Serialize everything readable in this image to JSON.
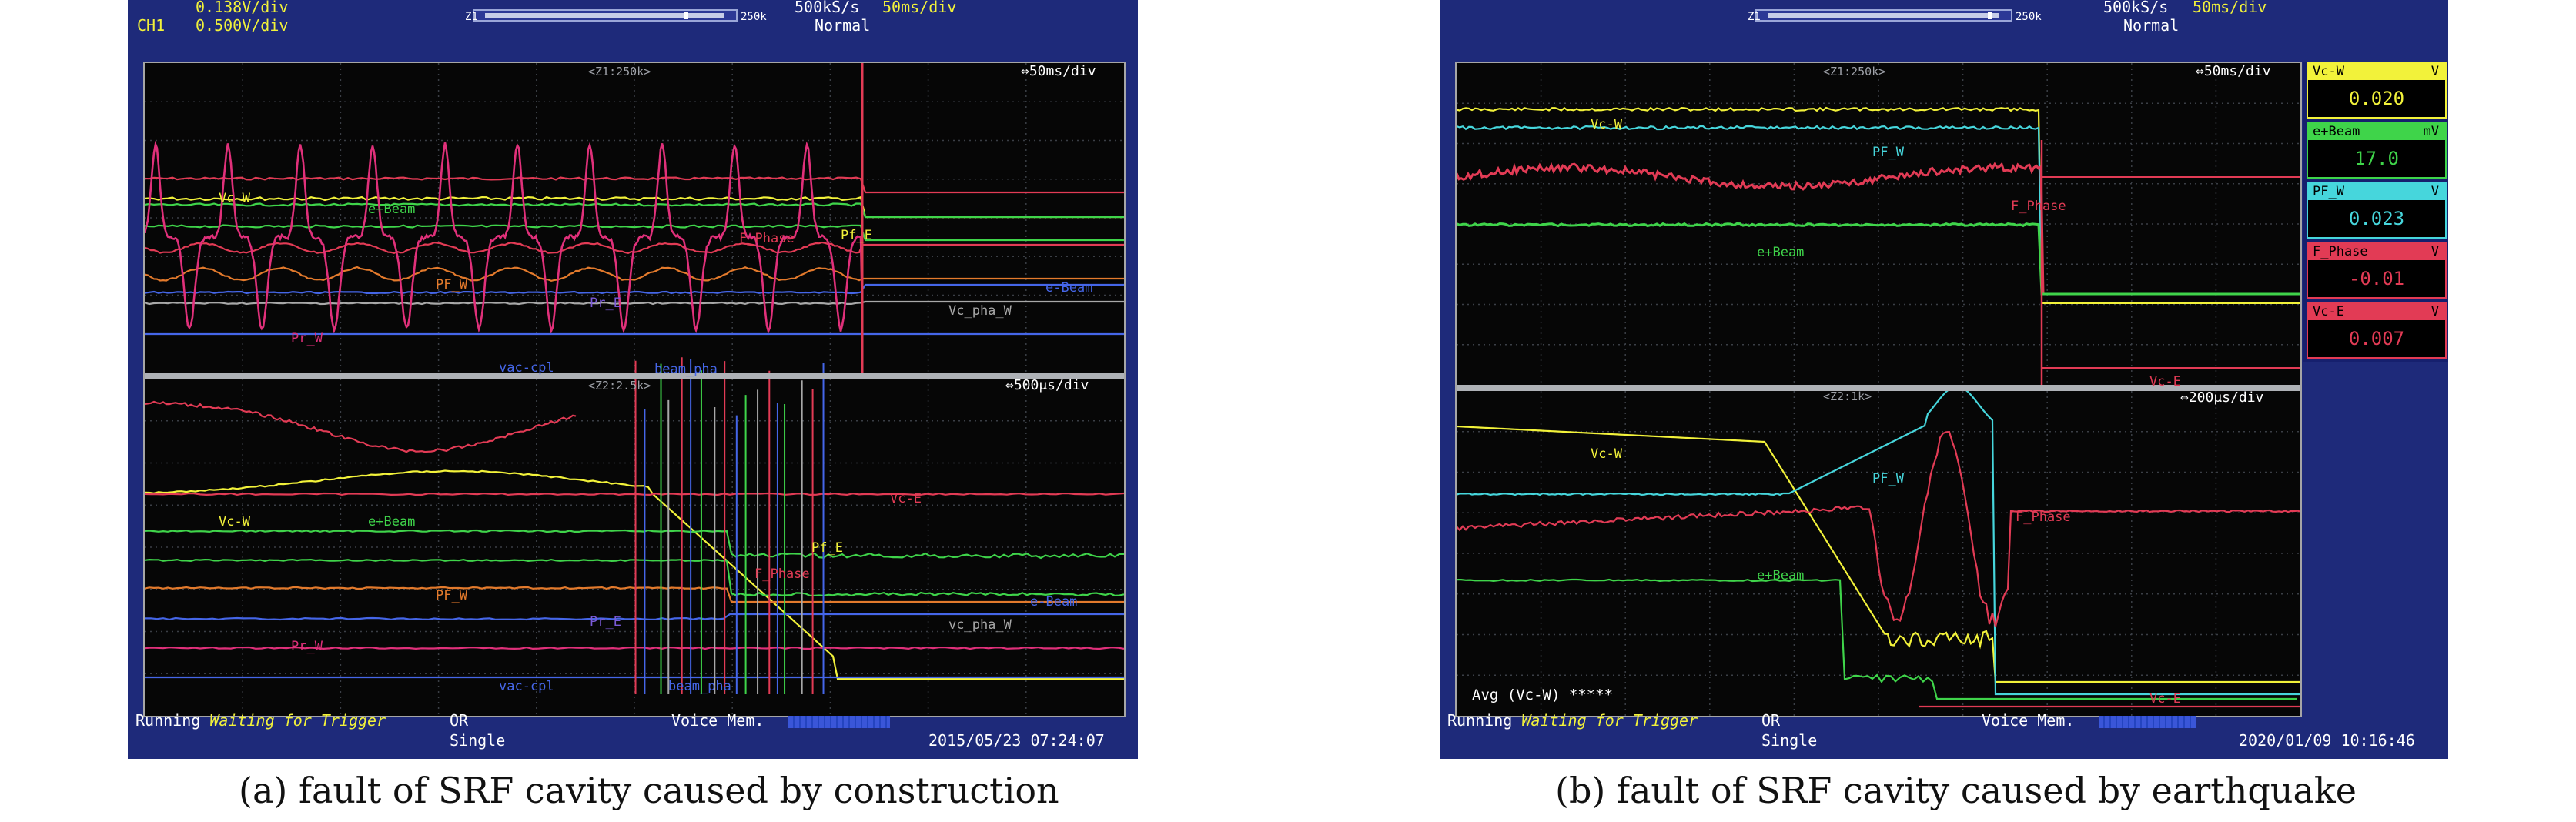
{
  "colors": {
    "frame": "#1e2a7a",
    "screen": "#060606",
    "yellow": "#f2f23a",
    "green": "#3fd44a",
    "red": "#e23b55",
    "cyan": "#46d6dc",
    "blue": "#4566e8",
    "orange": "#e37a2c",
    "pink": "#e0307a",
    "gray": "#a8a8a8"
  },
  "scope_a": {
    "ch_scale_top": "0.138V/div",
    "ch1_label": "CH1",
    "ch1_scale": "0.500V/div",
    "zoom_bar_left": "Z1",
    "zoom_bar_right": "250k",
    "sample_rate": "500kS/s",
    "timebase": "50ms/div",
    "mode": "Normal",
    "upper_zoom": "<Z1:250k>",
    "upper_timebase": "⇔50ms/div",
    "lower_zoom": "<Z2:2.5k>",
    "lower_timebase": "⇔500μs/div",
    "traces_upper": [
      "Vc-W",
      "e+Beam",
      "F_Phase",
      "Pf_E",
      "PF_W",
      "Pr_E",
      "Pr_W",
      "e-Beam",
      "Vc_pha_W",
      "vac-cpl"
    ],
    "traces_lower": [
      "beam_pha",
      "Vc-E",
      "Vc-W",
      "e+Beam",
      "F_Phase",
      "Pf_E",
      "PF_W",
      "e-Beam",
      "Pr_E",
      "vc_pha_W",
      "Pr_W",
      "vac-cpl",
      "beam_pha"
    ],
    "status": "Running",
    "trigger_status": "Waiting for Trigger",
    "trigger_mode": "OR",
    "acq_mode": "Single",
    "voice_memo": "Voice Mem.",
    "datetime": "2015/05/23 07:24:07"
  },
  "scope_b": {
    "sample_rate": "500kS/s",
    "timebase": "50ms/div",
    "mode": "Normal",
    "zoom_bar_left": "Z1",
    "zoom_bar_right": "250k",
    "upper_zoom": "<Z1:250k>",
    "upper_timebase": "⇔50ms/div",
    "lower_zoom": "<Z2:1k>",
    "lower_timebase": "⇔200μs/div",
    "traces_upper": [
      "Vc-W",
      "PF_W",
      "F_Phase",
      "e+Beam",
      "Vc-E"
    ],
    "traces_lower": [
      "Vc-W",
      "PF_W",
      "F_Phase",
      "e+Beam",
      "Vc-E"
    ],
    "avg_label": "Avg (Vc-W) *****",
    "measurements": [
      {
        "name": "Vc-W",
        "unit": "V",
        "value": "0.020",
        "color": "#f2f23a"
      },
      {
        "name": "e+Beam",
        "unit": "mV",
        "value": "17.0",
        "color": "#3fd44a"
      },
      {
        "name": "PF_W",
        "unit": "V",
        "value": "0.023",
        "color": "#46d6dc"
      },
      {
        "name": "F_Phase",
        "unit": "V",
        "value": "-0.01",
        "color": "#e23b55"
      },
      {
        "name": "Vc-E",
        "unit": "V",
        "value": "0.007",
        "color": "#e23b55"
      }
    ],
    "status": "Running",
    "trigger_status": "Waiting for Trigger",
    "trigger_mode": "OR",
    "acq_mode": "Single",
    "voice_memo": "Voice Mem.",
    "datetime": "2020/01/09 10:16:46"
  },
  "captions": {
    "a": "(a) fault of SRF cavity caused by construction",
    "b": "(b) fault of SRF cavity caused by earthquake"
  }
}
